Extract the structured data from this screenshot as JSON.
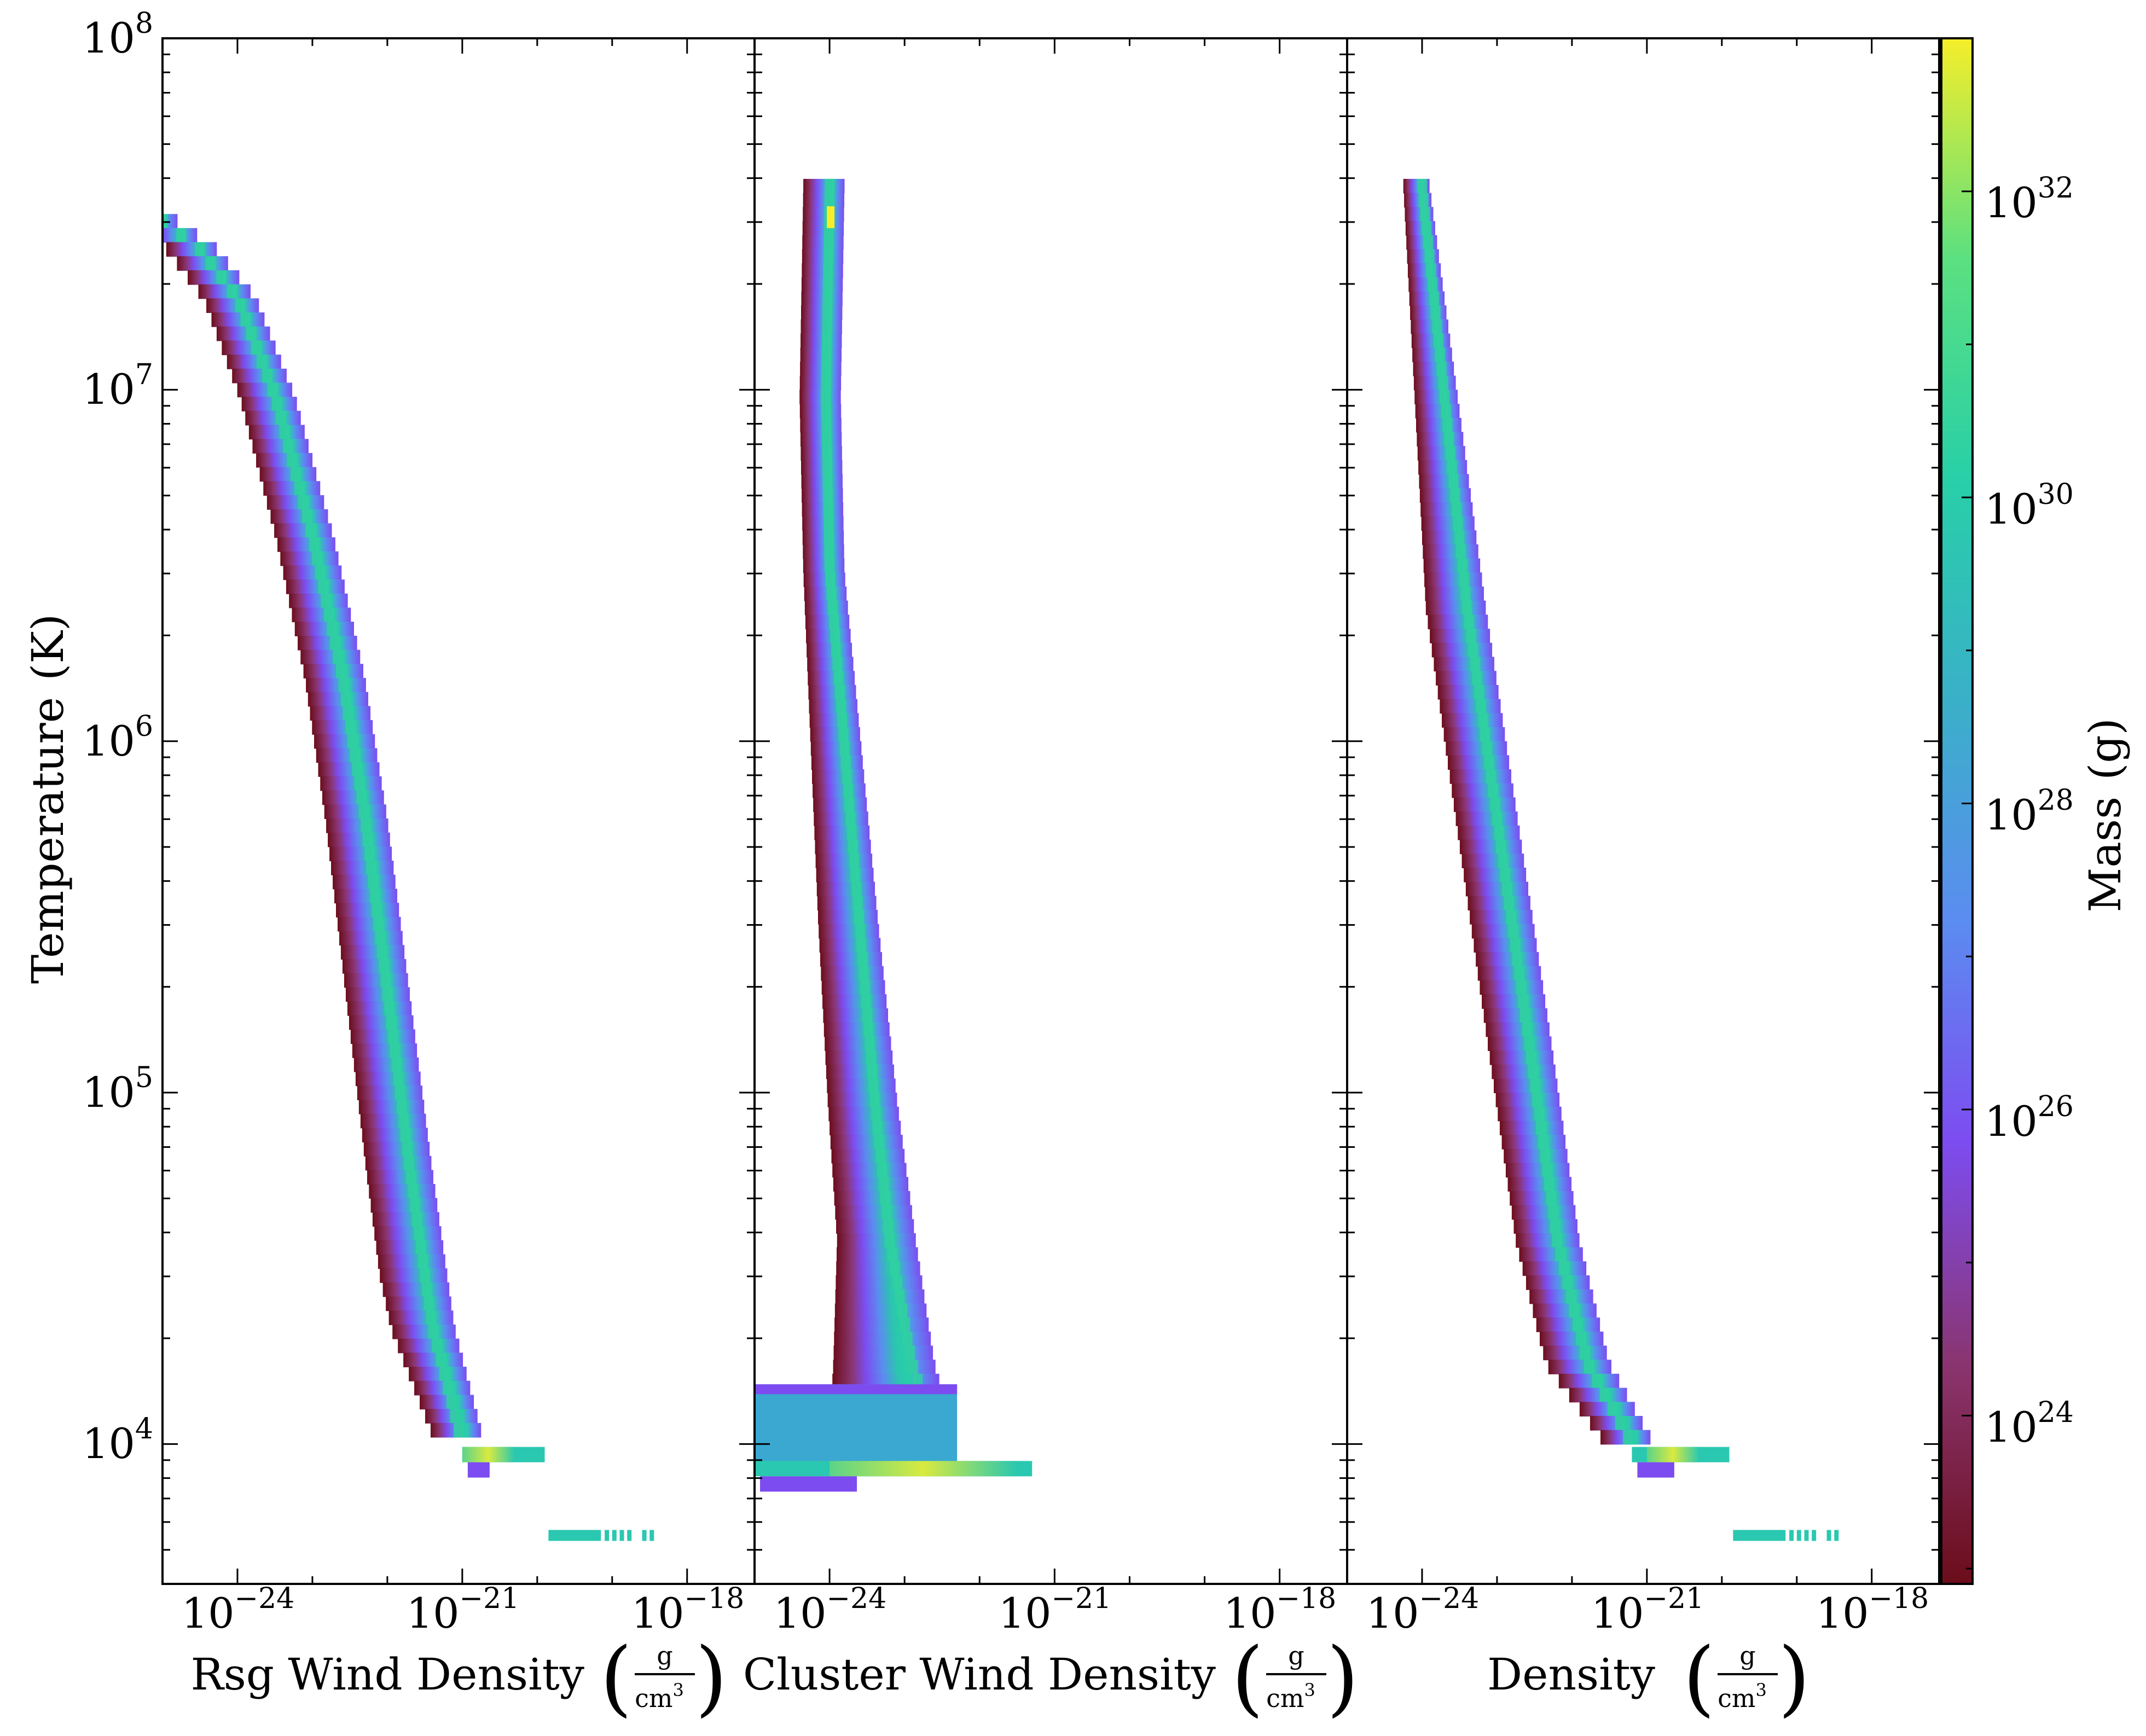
{
  "chart_data": {
    "type": "heatmap",
    "description_type": "2D mass-weighted phase histogram (log-log)",
    "shared_y_axis": {
      "label": "Temperature",
      "unit": "(K)",
      "scale": "log",
      "ylim": [
        4000,
        100000000
      ],
      "tick_labels": [
        {
          "base": "10",
          "exp": "4",
          "value": 10000
        },
        {
          "base": "10",
          "exp": "5",
          "value": 100000
        },
        {
          "base": "10",
          "exp": "6",
          "value": 1000000
        },
        {
          "base": "10",
          "exp": "7",
          "value": 10000000
        },
        {
          "base": "10",
          "exp": "8",
          "value": 100000000
        }
      ]
    },
    "x_tick_labels": [
      {
        "base": "10",
        "exp": "−24",
        "value": 1e-24
      },
      {
        "base": "10",
        "exp": "−21",
        "value": 1e-21
      },
      {
        "base": "10",
        "exp": "−18",
        "value": 1e-18
      }
    ],
    "xlim_log10": [
      -25.0,
      -17.1
    ],
    "panels": [
      {
        "name": "rsg",
        "xlabel": "Rsg Wind Density",
        "unit_num": "g",
        "unit_den": "cm",
        "unit_den_exp": "3",
        "ridge": [
          [
            -25.0,
            7.5
          ],
          [
            -24.5,
            7.42
          ],
          [
            -24.0,
            7.28
          ],
          [
            -23.5,
            7.0
          ],
          [
            -23.0,
            6.6
          ],
          [
            -22.6,
            6.2
          ],
          [
            -22.3,
            5.8
          ],
          [
            -22.0,
            5.3
          ],
          [
            -21.7,
            4.8
          ],
          [
            -21.4,
            4.35
          ],
          [
            -21.0,
            4.02
          ]
        ],
        "left_offset": [
          [
            -25.0,
            0.45
          ],
          [
            -24.0,
            0.45
          ],
          [
            -22.6,
            0.5
          ],
          [
            -21.5,
            0.6
          ],
          [
            -21.0,
            0.35
          ]
        ],
        "right_offset": [
          [
            -25.0,
            0.2
          ],
          [
            -24.0,
            0.25
          ],
          [
            -22.6,
            0.3
          ],
          [
            -21.5,
            0.3
          ],
          [
            -21.0,
            0.3
          ]
        ],
        "lowT_strip": {
          "log_temp": 3.97,
          "x_start": -21.0,
          "x_end": -19.9,
          "bright_start": -21.0,
          "bright_end": -20.3
        },
        "dots": {
          "log_temp": 3.74,
          "x_start": -19.85,
          "x_end": -18.5
        }
      },
      {
        "name": "cluster",
        "xlabel": "Cluster Wind Density",
        "unit_num": "g",
        "unit_den": "cm",
        "unit_den_exp": "3",
        "ridge": [
          [
            -24.0,
            7.6
          ],
          [
            -24.05,
            7.0
          ],
          [
            -24.0,
            6.5
          ],
          [
            -23.8,
            6.0
          ],
          [
            -23.6,
            5.5
          ],
          [
            -23.4,
            5.0
          ],
          [
            -23.2,
            4.6
          ],
          [
            -22.9,
            4.25
          ],
          [
            -22.6,
            4.05
          ]
        ],
        "left_offset": [
          [
            -24.0,
            0.35
          ],
          [
            -23.6,
            0.55
          ],
          [
            -23.2,
            0.7
          ],
          [
            -22.6,
            1.4
          ]
        ],
        "right_offset": [
          [
            -24.0,
            0.2
          ],
          [
            -23.6,
            0.25
          ],
          [
            -23.2,
            0.35
          ],
          [
            -22.6,
            0.25
          ]
        ],
        "cold_plateau": {
          "x_start": -25.0,
          "x_end": -22.3,
          "log_temp_low": 3.92,
          "log_temp_high": 4.17
        },
        "lowT_strip": {
          "log_temp": 3.93,
          "x_start": -25.0,
          "x_end": -21.3,
          "bright_start": -24.0,
          "bright_end": -21.5
        },
        "peak": {
          "x": -24.0,
          "log_temp": 7.6
        }
      },
      {
        "name": "total",
        "xlabel": "Density",
        "unit_num": "g",
        "unit_den": "cm",
        "unit_den_exp": "3",
        "ridge": [
          [
            -24.0,
            7.6
          ],
          [
            -23.7,
            7.0
          ],
          [
            -23.4,
            6.4
          ],
          [
            -23.0,
            5.8
          ],
          [
            -22.6,
            5.2
          ],
          [
            -22.2,
            4.6
          ],
          [
            -21.8,
            4.25
          ],
          [
            -21.2,
            4.02
          ]
        ],
        "left_offset": [
          [
            -24.0,
            0.25
          ],
          [
            -23.4,
            0.55
          ],
          [
            -22.6,
            0.55
          ],
          [
            -21.8,
            0.55
          ],
          [
            -21.2,
            0.35
          ]
        ],
        "right_offset": [
          [
            -24.0,
            0.1
          ],
          [
            -23.4,
            0.25
          ],
          [
            -22.6,
            0.3
          ],
          [
            -21.8,
            0.3
          ],
          [
            -21.2,
            0.3
          ]
        ],
        "lowT_strip": {
          "log_temp": 3.97,
          "x_start": -21.2,
          "x_end": -19.9,
          "bright_start": -21.0,
          "bright_end": -20.3
        },
        "dots": {
          "log_temp": 3.74,
          "x_start": -19.85,
          "x_end": -18.5
        }
      }
    ],
    "colorbar": {
      "label": "Mass",
      "unit": "(g)",
      "scale": "log",
      "range_log10": [
        22.9,
        33.0
      ],
      "tick_labels": [
        {
          "base": "10",
          "exp": "24",
          "value": 24
        },
        {
          "base": "10",
          "exp": "26",
          "value": 26
        },
        {
          "base": "10",
          "exp": "28",
          "value": 28
        },
        {
          "base": "10",
          "exp": "30",
          "value": 30
        },
        {
          "base": "10",
          "exp": "32",
          "value": 32
        }
      ],
      "colormap_stops": [
        "#6b0d1a",
        "#8a3570",
        "#7d4cf0",
        "#5b8cf0",
        "#3ab0c8",
        "#28cfa8",
        "#5be080",
        "#f5ee2a"
      ]
    }
  }
}
